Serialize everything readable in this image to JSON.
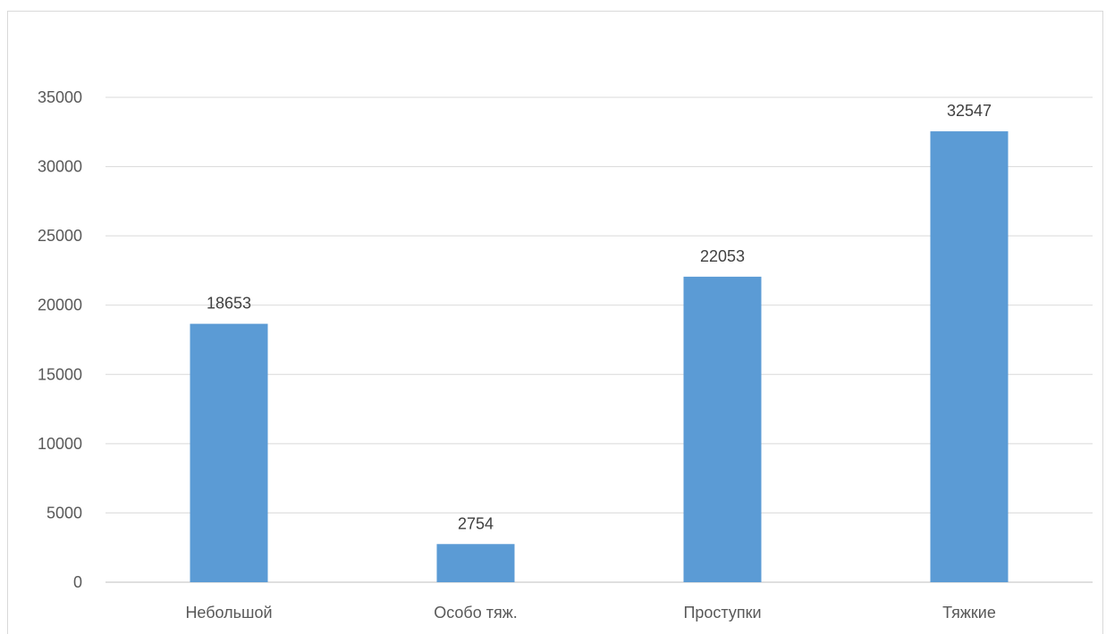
{
  "chart_data": {
    "type": "bar",
    "categories": [
      "Небольшой",
      "Особо тяж.",
      "Проступки",
      "Тяжкие"
    ],
    "values": [
      18653,
      2754,
      22053,
      32547
    ],
    "title": "",
    "xlabel": "",
    "ylabel": "",
    "ylim": [
      0,
      35000
    ],
    "yticks": [
      0,
      5000,
      10000,
      15000,
      20000,
      25000,
      30000,
      35000
    ],
    "grid": true,
    "legend": "none",
    "data_labels": true,
    "colors": {
      "bar": "#5B9BD5",
      "grid": "#d9d9d9",
      "axis": "#bfbfbf",
      "tick_text": "#595959",
      "label_text": "#404040"
    }
  }
}
